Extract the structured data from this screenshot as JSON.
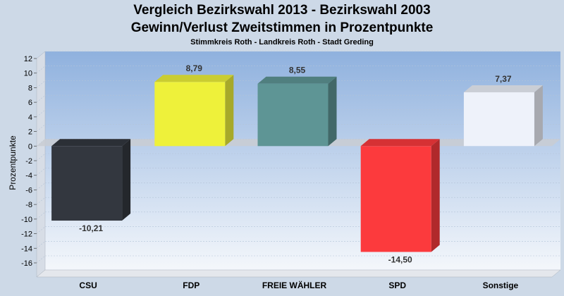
{
  "chart_data": {
    "type": "bar",
    "title": "Vergleich Bezirkswahl 2013 - Bezirkswahl 2003",
    "subtitle_line": "Gewinn/Verlust Zweitstimmen in Prozentpunkte",
    "subtitle": "Stimmkreis Roth - Landkreis Roth - Stadt Greding",
    "ylabel": "Prozentpunkte",
    "xlabel": "",
    "ylim": [
      -18,
      12
    ],
    "yticks": [
      12,
      10,
      8,
      6,
      4,
      2,
      0,
      -2,
      -4,
      -6,
      -8,
      -10,
      -12,
      -14,
      -16
    ],
    "grid": true,
    "categories": [
      "CSU",
      "FDP",
      "FREIE WÄHLER",
      "SPD",
      "Sonstige"
    ],
    "values": [
      -10.21,
      8.79,
      8.55,
      -14.5,
      7.37
    ],
    "value_labels": [
      "-10,21",
      "8,79",
      "8,55",
      "-14,50",
      "7,37"
    ],
    "colors": [
      "#33373f",
      "#eef13a",
      "#5e9595",
      "#fc3a3d",
      "#eef2fa"
    ]
  }
}
